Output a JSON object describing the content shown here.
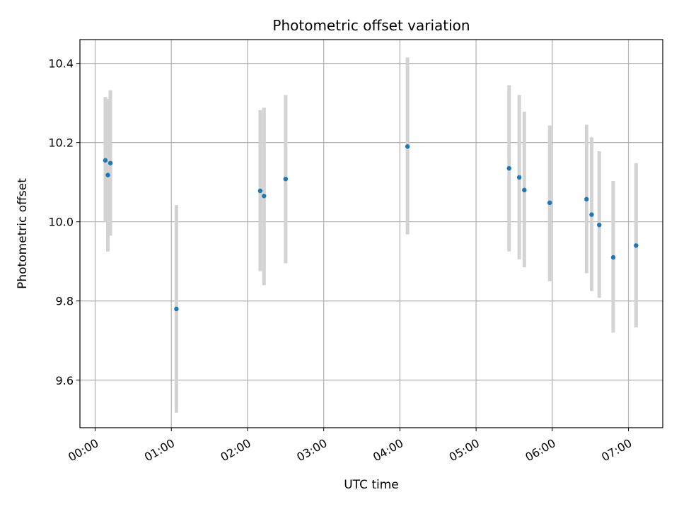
{
  "chart_data": {
    "type": "scatter",
    "title": "Photometric offset variation",
    "xlabel": "UTC time",
    "ylabel": "Photometric offset",
    "x_tick_labels": [
      "00:00",
      "01:00",
      "02:00",
      "03:00",
      "04:00",
      "05:00",
      "06:00",
      "07:00"
    ],
    "x_ticks_hours": [
      0,
      1,
      2,
      3,
      4,
      5,
      6,
      7
    ],
    "y_ticks": [
      9.6,
      9.8,
      10.0,
      10.2,
      10.4
    ],
    "y_tick_labels": [
      "9.6",
      "9.8",
      "10.0",
      "10.2",
      "10.4"
    ],
    "xlim_hours": [
      -0.2,
      7.45
    ],
    "ylim": [
      9.48,
      10.46
    ],
    "grid": true,
    "colors": {
      "point": "#1f77b4",
      "errorbar": "#d3d3d3",
      "grid": "#b0b0b0"
    },
    "points": [
      {
        "t": "00:08",
        "y": 10.155,
        "lo": 10.0,
        "hi": 10.315
      },
      {
        "t": "00:10",
        "y": 10.118,
        "lo": 9.925,
        "hi": 10.31
      },
      {
        "t": "00:12",
        "y": 10.148,
        "lo": 9.965,
        "hi": 10.332
      },
      {
        "t": "01:04",
        "y": 9.78,
        "lo": 9.518,
        "hi": 10.042
      },
      {
        "t": "02:10",
        "y": 10.078,
        "lo": 9.875,
        "hi": 10.282
      },
      {
        "t": "02:13",
        "y": 10.065,
        "lo": 9.84,
        "hi": 10.288
      },
      {
        "t": "02:30",
        "y": 10.108,
        "lo": 9.895,
        "hi": 10.32
      },
      {
        "t": "04:06",
        "y": 10.19,
        "lo": 9.968,
        "hi": 10.415
      },
      {
        "t": "05:26",
        "y": 10.135,
        "lo": 9.925,
        "hi": 10.345
      },
      {
        "t": "05:34",
        "y": 10.112,
        "lo": 9.905,
        "hi": 10.32
      },
      {
        "t": "05:38",
        "y": 10.08,
        "lo": 9.885,
        "hi": 10.278
      },
      {
        "t": "05:58",
        "y": 10.048,
        "lo": 9.85,
        "hi": 10.243
      },
      {
        "t": "06:27",
        "y": 10.057,
        "lo": 9.87,
        "hi": 10.245
      },
      {
        "t": "06:31",
        "y": 10.018,
        "lo": 9.825,
        "hi": 10.213
      },
      {
        "t": "06:37",
        "y": 9.992,
        "lo": 9.808,
        "hi": 10.178
      },
      {
        "t": "06:48",
        "y": 9.91,
        "lo": 9.72,
        "hi": 10.103
      },
      {
        "t": "07:06",
        "y": 9.94,
        "lo": 9.733,
        "hi": 10.148
      }
    ]
  }
}
